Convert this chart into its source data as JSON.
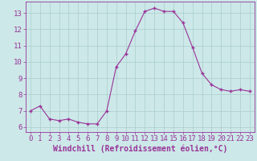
{
  "x": [
    0,
    1,
    2,
    3,
    4,
    5,
    6,
    7,
    8,
    9,
    10,
    11,
    12,
    13,
    14,
    15,
    16,
    17,
    18,
    19,
    20,
    21,
    22,
    23
  ],
  "y": [
    7.0,
    7.3,
    6.5,
    6.4,
    6.5,
    6.3,
    6.2,
    6.2,
    7.0,
    9.7,
    10.5,
    11.9,
    13.1,
    13.3,
    13.1,
    13.1,
    12.4,
    10.9,
    9.3,
    8.6,
    8.3,
    8.2,
    8.3,
    8.2
  ],
  "line_color": "#993399",
  "marker_color": "#993399",
  "bg_color": "#cce8e8",
  "grid_color": "#aacece",
  "axis_color": "#993399",
  "xlabel": "Windchill (Refroidissement éolien,°C)",
  "xlim": [
    -0.5,
    23.5
  ],
  "ylim": [
    5.7,
    13.7
  ],
  "yticks": [
    6,
    7,
    8,
    9,
    10,
    11,
    12,
    13
  ],
  "xticks": [
    0,
    1,
    2,
    3,
    4,
    5,
    6,
    7,
    8,
    9,
    10,
    11,
    12,
    13,
    14,
    15,
    16,
    17,
    18,
    19,
    20,
    21,
    22,
    23
  ],
  "font_color": "#993399",
  "tick_fontsize": 6.5,
  "label_fontsize": 7.0
}
